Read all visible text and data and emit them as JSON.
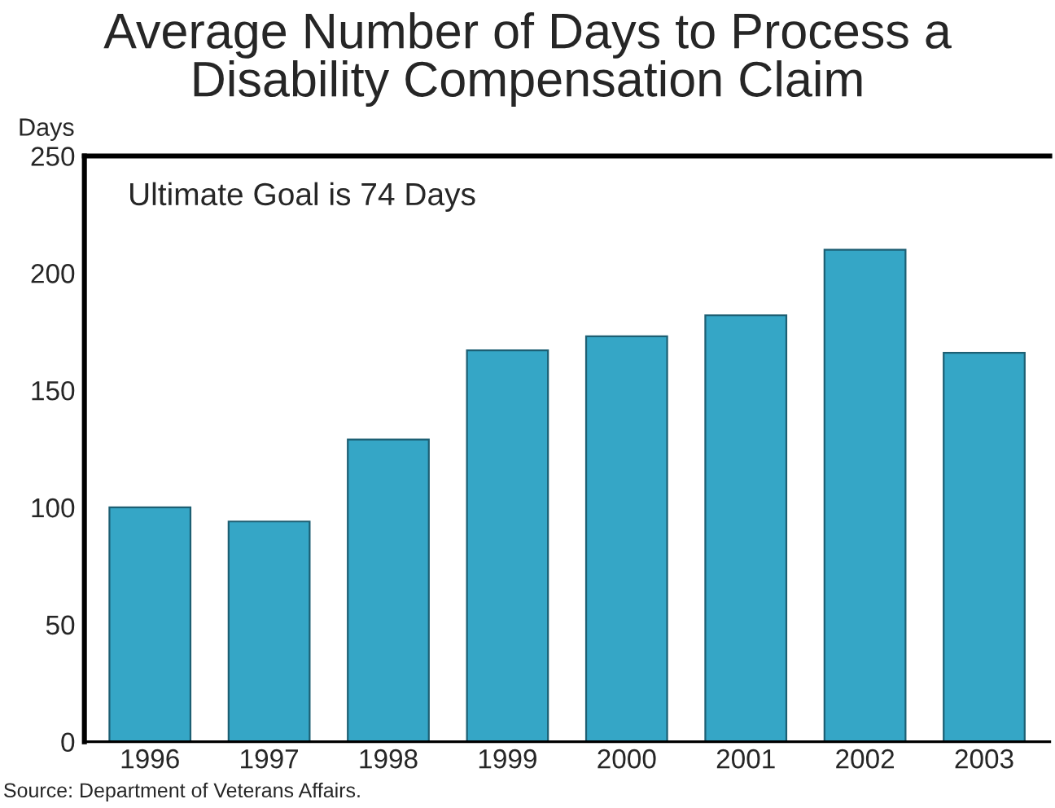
{
  "chart_data": {
    "type": "bar",
    "title": "Average Number of Days to Process a\nDisability Compensation Claim",
    "ylabel": "Days",
    "categories": [
      "1996",
      "1997",
      "1998",
      "1999",
      "2000",
      "2001",
      "2002",
      "2003"
    ],
    "values": [
      100,
      94,
      129,
      167,
      173,
      182,
      210,
      166
    ],
    "color": "#35a6c6",
    "ylim": [
      0,
      250
    ],
    "yticks": [
      0,
      50,
      100,
      150,
      200,
      250
    ],
    "grid": false,
    "annotations": [
      "Ultimate Goal is 74 Days",
      "Source: Department of Veterans Affairs."
    ]
  }
}
